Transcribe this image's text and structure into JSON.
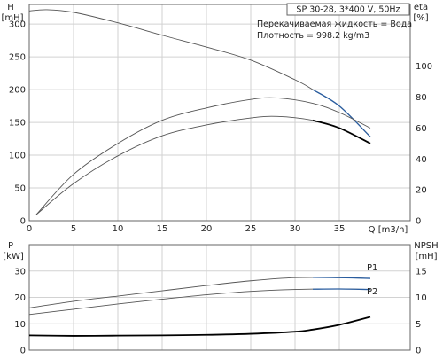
{
  "chart_data": [
    {
      "type": "line",
      "header": {
        "model": "SP 30-28, 3*400 V, 50Hz",
        "liquid": "Перекачиваемая жидкость = Вода",
        "density": "Плотность = 998.2 kg/m3"
      },
      "xlabel": "Q [m3/h]",
      "ylabel_left_line1": "H",
      "ylabel_left_line2": "[mH]",
      "ylabel_right_line1": "eta",
      "ylabel_right_line2": "[%]",
      "xlim": [
        0,
        43
      ],
      "ylim_left": [
        0,
        330
      ],
      "ylim_right": [
        0,
        140
      ],
      "grid": true,
      "x_ticks": [
        0,
        5,
        10,
        15,
        20,
        25,
        30,
        35
      ],
      "y_left_ticks": [
        0,
        50,
        100,
        150,
        200,
        250,
        300
      ],
      "y_right_ticks": [
        0,
        20,
        40,
        60,
        80,
        100
      ],
      "series": [
        {
          "axis": "left",
          "style": "thin",
          "x": [
            0,
            2,
            5,
            10,
            15,
            20,
            25,
            30,
            32,
            35,
            38.5
          ],
          "y": [
            320,
            322,
            318,
            302,
            283,
            265,
            245,
            215,
            200,
            175,
            128
          ]
        },
        {
          "axis": "left",
          "style": "blue",
          "x": [
            32,
            35,
            38.5
          ],
          "y": [
            200,
            175,
            128
          ]
        },
        {
          "axis": "right",
          "style": "thin",
          "x": [
            0.8,
            5,
            10,
            15,
            20,
            25,
            28,
            32,
            35,
            38.5
          ],
          "y": [
            4,
            30,
            50,
            65,
            73,
            78.5,
            79.5,
            76,
            70,
            60
          ]
        },
        {
          "axis": "right",
          "style": "thin",
          "x": [
            0.8,
            5,
            10,
            15,
            20,
            25,
            28,
            32,
            35,
            38.5
          ],
          "y": [
            4,
            24,
            42,
            55,
            62,
            66.5,
            67.5,
            65,
            60,
            50
          ]
        },
        {
          "axis": "right",
          "style": "bold",
          "x": [
            32,
            35,
            38.5
          ],
          "y": [
            65,
            60,
            50
          ]
        }
      ]
    },
    {
      "type": "line",
      "xlabel": "",
      "ylabel_left_line1": "P",
      "ylabel_left_line2": "[kW]",
      "ylabel_right_line1": "NPSH",
      "ylabel_right_line2": "[mH]",
      "xlim": [
        0,
        43
      ],
      "ylim_left": [
        0,
        40
      ],
      "ylim_right": [
        0,
        20
      ],
      "grid": true,
      "x_ticks": [
        0,
        5,
        10,
        15,
        20,
        25,
        30,
        35
      ],
      "y_left_ticks": [
        0,
        10,
        20,
        30
      ],
      "y_right_ticks": [
        0,
        5,
        10,
        15
      ],
      "series": [
        {
          "name": "P1",
          "axis": "left",
          "style": "thin",
          "x": [
            0,
            5,
            10,
            15,
            20,
            25,
            30,
            35,
            38.5
          ],
          "y": [
            16,
            18.5,
            20.5,
            22.5,
            24.5,
            26.3,
            27.5,
            27.5,
            27.2
          ]
        },
        {
          "name": "P2",
          "axis": "left",
          "style": "thin",
          "x": [
            0,
            5,
            10,
            15,
            20,
            25,
            30,
            35,
            38.5
          ],
          "y": [
            13.5,
            15.5,
            17.5,
            19.3,
            21,
            22.3,
            23,
            23.2,
            23
          ]
        },
        {
          "axis": "left",
          "style": "blue",
          "x": [
            32,
            35,
            38.5
          ],
          "y": [
            27.6,
            27.5,
            27.2
          ]
        },
        {
          "axis": "left",
          "style": "blue",
          "x": [
            32,
            35,
            38.5
          ],
          "y": [
            23.1,
            23.2,
            23
          ]
        },
        {
          "axis": "right",
          "style": "bold",
          "x": [
            0,
            5,
            10,
            15,
            20,
            25,
            30,
            32,
            35,
            38.5
          ],
          "y": [
            2.8,
            2.7,
            2.75,
            2.8,
            2.9,
            3.1,
            3.5,
            3.9,
            4.8,
            6.3
          ]
        }
      ]
    }
  ]
}
